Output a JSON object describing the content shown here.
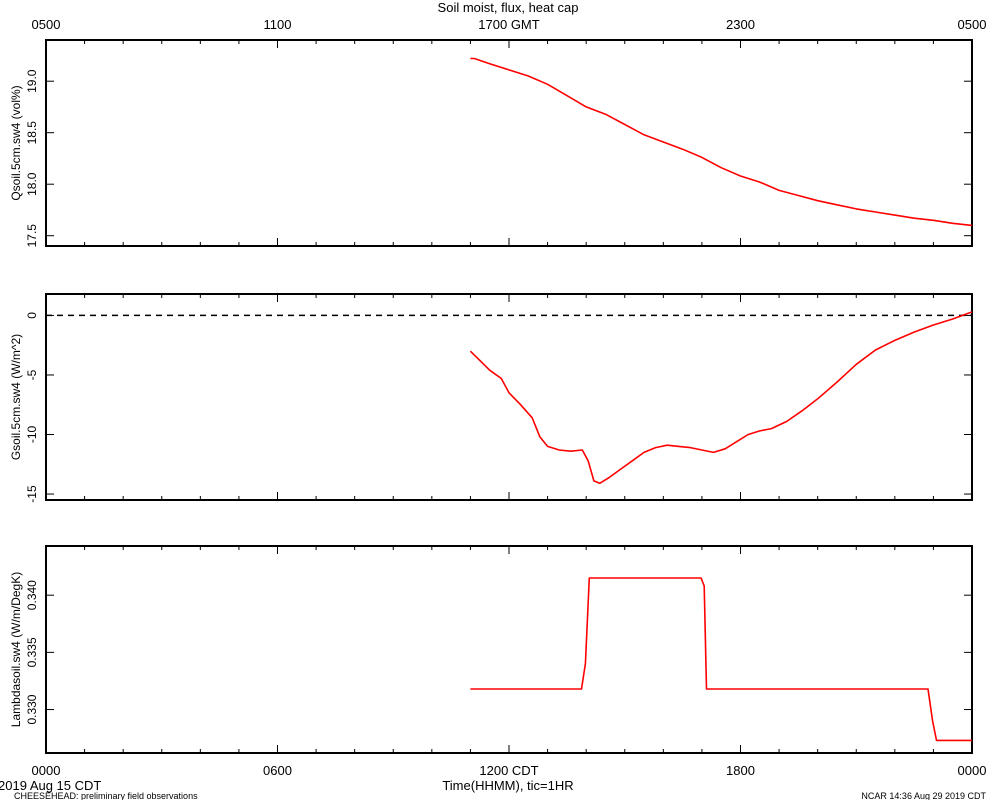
{
  "chart_data": {
    "type": "line",
    "title": "Soil moist, flux, heat cap",
    "top_axis": {
      "tick_labels": [
        "0500",
        "1100",
        "1700 GMT",
        "2300",
        "0500"
      ],
      "tick_hours": [
        0,
        6,
        12,
        18,
        24
      ]
    },
    "x_axis": {
      "label": "Time(HHMM), tic=1HR",
      "tick_labels": [
        "0000",
        "0600",
        "1200 CDT",
        "1800",
        "0000"
      ],
      "tick_hours": [
        0,
        6,
        12,
        18,
        24
      ],
      "range_hours": [
        0,
        24
      ],
      "minor_tick_step_hours": 1
    },
    "date_label": "2019 Aug 15 CDT",
    "footer_left": "CHEESEHEAD: preliminary field observations",
    "footer_right": "NCAR 14:36 Aug 29 2019 CDT",
    "line_color": "#ff0000",
    "panels": [
      {
        "ylabel": "Qsoil.5cm.sw4 (vol%)",
        "ylim": [
          17.4,
          19.4
        ],
        "yticks": [
          17.5,
          18.0,
          18.5,
          19.0
        ],
        "ytick_labels": [
          "17.5",
          "18.0",
          "18.5",
          "19.0"
        ],
        "zero_line": false,
        "series": [
          {
            "x_hours": [
              11.0,
              11.1,
              11.5,
              12.0,
              12.5,
              13.0,
              13.5,
              14.0,
              14.5,
              15.0,
              15.5,
              16.0,
              16.5,
              17.0,
              17.5,
              18.0,
              18.5,
              19.0,
              19.5,
              20.0,
              20.5,
              21.0,
              21.5,
              22.0,
              22.5,
              23.0,
              23.5,
              24.0
            ],
            "y": [
              19.22,
              19.22,
              19.17,
              19.11,
              19.05,
              18.97,
              18.86,
              18.75,
              18.68,
              18.58,
              18.48,
              18.41,
              18.34,
              18.26,
              18.16,
              18.08,
              18.02,
              17.94,
              17.89,
              17.84,
              17.8,
              17.76,
              17.73,
              17.7,
              17.67,
              17.65,
              17.62,
              17.6
            ]
          }
        ]
      },
      {
        "ylabel": "Gsoil.5cm.sw4 (W/m^2)",
        "ylim": [
          -15.5,
          1.8
        ],
        "yticks": [
          -15,
          -10,
          -5,
          0
        ],
        "ytick_labels": [
          "-15",
          "-10",
          "-5",
          "0"
        ],
        "zero_line": true,
        "series": [
          {
            "x_hours": [
              11.0,
              11.25,
              11.5,
              11.8,
              12.0,
              12.3,
              12.6,
              12.8,
              13.0,
              13.3,
              13.6,
              13.9,
              14.05,
              14.2,
              14.35,
              14.6,
              14.9,
              15.2,
              15.5,
              15.8,
              16.1,
              16.4,
              16.7,
              17.0,
              17.3,
              17.6,
              17.9,
              18.2,
              18.5,
              18.8,
              19.2,
              19.6,
              20.0,
              20.5,
              21.0,
              21.5,
              22.0,
              22.5,
              23.0,
              23.5,
              24.0
            ],
            "y": [
              -3.0,
              -3.8,
              -4.6,
              -5.3,
              -6.5,
              -7.5,
              -8.6,
              -10.2,
              -11.0,
              -11.3,
              -11.4,
              -11.3,
              -12.2,
              -13.9,
              -14.1,
              -13.6,
              -12.9,
              -12.2,
              -11.5,
              -11.1,
              -10.9,
              -11.0,
              -11.1,
              -11.3,
              -11.5,
              -11.2,
              -10.6,
              -10.0,
              -9.7,
              -9.5,
              -8.9,
              -8.0,
              -7.0,
              -5.6,
              -4.1,
              -2.9,
              -2.1,
              -1.4,
              -0.8,
              -0.3,
              0.3
            ]
          }
        ]
      },
      {
        "ylabel": "Lambdasoil.sw4 (W/m/DegK)",
        "ylim": [
          0.3262,
          0.3443
        ],
        "yticks": [
          0.33,
          0.335,
          0.34
        ],
        "ytick_labels": [
          "0.330",
          "0.335",
          "0.340"
        ],
        "zero_line": false,
        "series": [
          {
            "x_hours": [
              11.0,
              13.88,
              13.98,
              14.08,
              16.98,
              17.06,
              17.12,
              22.86,
              22.98,
              23.08,
              24.0
            ],
            "y": [
              0.3318,
              0.3318,
              0.334,
              0.3415,
              0.3415,
              0.3408,
              0.3318,
              0.3318,
              0.329,
              0.3273,
              0.3273
            ]
          }
        ]
      }
    ]
  }
}
